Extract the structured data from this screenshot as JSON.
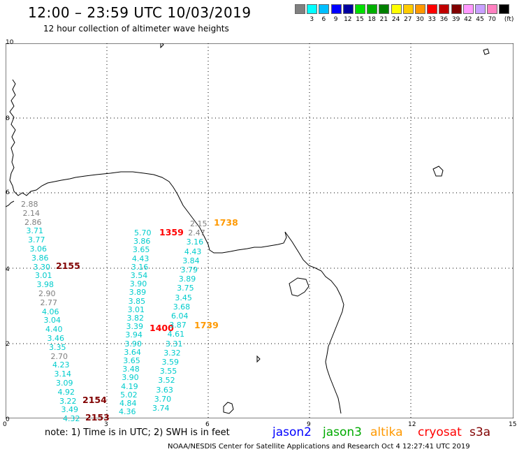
{
  "header": {
    "title": "12:00 – 23:59 UTC 10/03/2019",
    "subtitle": "12 hour collection of altimeter wave heights"
  },
  "color_scale": {
    "swatches": [
      {
        "label": "",
        "color": "#808080"
      },
      {
        "label": "3",
        "color": "#00ffff"
      },
      {
        "label": "6",
        "color": "#00bfff"
      },
      {
        "label": "9",
        "color": "#0000ff"
      },
      {
        "label": "12",
        "color": "#0000a0"
      },
      {
        "label": "15",
        "color": "#00e000"
      },
      {
        "label": "18",
        "color": "#00b000"
      },
      {
        "label": "21",
        "color": "#008000"
      },
      {
        "label": "24",
        "color": "#ffff00"
      },
      {
        "label": "27",
        "color": "#ffcc00"
      },
      {
        "label": "30",
        "color": "#ff9900"
      },
      {
        "label": "33",
        "color": "#ff0000"
      },
      {
        "label": "36",
        "color": "#c00000"
      },
      {
        "label": "39",
        "color": "#800000"
      },
      {
        "label": "42",
        "color": "#ff99ff"
      },
      {
        "label": "45",
        "color": "#c8a0ff"
      },
      {
        "label": "70",
        "color": "#ff80c0"
      },
      {
        "label": "",
        "color": "#000000"
      }
    ],
    "unit": "(ft)"
  },
  "axes": {
    "x_ticks": [
      "0",
      "3",
      "6",
      "9",
      "12",
      "15"
    ],
    "y_ticks": [
      "0",
      "2",
      "4",
      "6",
      "8",
      "10"
    ]
  },
  "tracks": [
    {
      "id": "t1",
      "time": {
        "text": "2155",
        "color": "#800000"
      },
      "values": [
        {
          "v": "2.88",
          "c": "#808080"
        },
        {
          "v": "2.14",
          "c": "#808080"
        },
        {
          "v": "2.86",
          "c": "#808080"
        },
        {
          "v": "3.71",
          "c": "#00cccc"
        },
        {
          "v": "3.77",
          "c": "#00cccc"
        },
        {
          "v": "3.06",
          "c": "#00cccc"
        },
        {
          "v": "3.86",
          "c": "#00cccc"
        },
        {
          "v": "3.30",
          "c": "#00cccc"
        },
        {
          "v": "3.01",
          "c": "#00cccc"
        },
        {
          "v": "3.98",
          "c": "#00cccc"
        },
        {
          "v": "2.90",
          "c": "#808080"
        },
        {
          "v": "2.77",
          "c": "#808080"
        },
        {
          "v": "4.06",
          "c": "#00cccc"
        },
        {
          "v": "3.04",
          "c": "#00cccc"
        },
        {
          "v": "4.40",
          "c": "#00cccc"
        },
        {
          "v": "3.46",
          "c": "#00cccc"
        },
        {
          "v": "3.35",
          "c": "#00cccc"
        },
        {
          "v": "2.70",
          "c": "#808080"
        },
        {
          "v": "4.23",
          "c": "#00cccc"
        },
        {
          "v": "3.14",
          "c": "#00cccc"
        },
        {
          "v": "3.09",
          "c": "#00cccc"
        },
        {
          "v": "4.92",
          "c": "#00cccc"
        },
        {
          "v": "3.22",
          "c": "#00cccc"
        },
        {
          "v": "3.49",
          "c": "#00cccc"
        },
        {
          "v": "4.32",
          "c": "#00cccc"
        }
      ],
      "times": [
        {
          "text": "2154",
          "color": "#800000"
        },
        {
          "text": "2153",
          "color": "#800000"
        }
      ]
    },
    {
      "id": "t2",
      "time": {
        "text": "1359",
        "color": "#ff0000"
      },
      "values": [
        {
          "v": "5.70",
          "c": "#00cccc"
        },
        {
          "v": "3.86",
          "c": "#00cccc"
        },
        {
          "v": "3.65",
          "c": "#00cccc"
        },
        {
          "v": "4.43",
          "c": "#00cccc"
        },
        {
          "v": "3.16",
          "c": "#00cccc"
        },
        {
          "v": "3.54",
          "c": "#00cccc"
        },
        {
          "v": "3.90",
          "c": "#00cccc"
        },
        {
          "v": "3.89",
          "c": "#00cccc"
        },
        {
          "v": "3.85",
          "c": "#00cccc"
        },
        {
          "v": "3.01",
          "c": "#00cccc"
        },
        {
          "v": "3.82",
          "c": "#00cccc"
        },
        {
          "v": "3.39",
          "c": "#00cccc"
        },
        {
          "v": "3.94",
          "c": "#00cccc"
        },
        {
          "v": "3.90",
          "c": "#00cccc"
        },
        {
          "v": "3.64",
          "c": "#00cccc"
        },
        {
          "v": "3.65",
          "c": "#00cccc"
        },
        {
          "v": "3.48",
          "c": "#00cccc"
        },
        {
          "v": "3.90",
          "c": "#00cccc"
        },
        {
          "v": "4.19",
          "c": "#00cccc"
        },
        {
          "v": "5.02",
          "c": "#00cccc"
        },
        {
          "v": "4.84",
          "c": "#00cccc"
        },
        {
          "v": "4.36",
          "c": "#00cccc"
        }
      ],
      "time2": {
        "text": "1400",
        "color": "#ff0000"
      }
    },
    {
      "id": "t3",
      "time": {
        "text": "1738",
        "color": "#ff9900"
      },
      "values": [
        {
          "v": "2.15",
          "c": "#808080"
        },
        {
          "v": "2.47",
          "c": "#808080"
        },
        {
          "v": "3.16",
          "c": "#00cccc"
        },
        {
          "v": "4.43",
          "c": "#00cccc"
        },
        {
          "v": "3.84",
          "c": "#00cccc"
        },
        {
          "v": "3.79",
          "c": "#00cccc"
        },
        {
          "v": "3.89",
          "c": "#00cccc"
        },
        {
          "v": "3.75",
          "c": "#00cccc"
        },
        {
          "v": "3.45",
          "c": "#00cccc"
        },
        {
          "v": "3.68",
          "c": "#00cccc"
        },
        {
          "v": "6.04",
          "c": "#00cccc"
        },
        {
          "v": "3.87",
          "c": "#00cccc"
        },
        {
          "v": "4.61",
          "c": "#00cccc"
        },
        {
          "v": "3.31",
          "c": "#00cccc"
        },
        {
          "v": "3.32",
          "c": "#00cccc"
        },
        {
          "v": "3.59",
          "c": "#00cccc"
        },
        {
          "v": "3.55",
          "c": "#00cccc"
        },
        {
          "v": "3.52",
          "c": "#00cccc"
        },
        {
          "v": "3.63",
          "c": "#00cccc"
        },
        {
          "v": "3.70",
          "c": "#00cccc"
        },
        {
          "v": "3.74",
          "c": "#00cccc"
        }
      ],
      "time2": {
        "text": "1739",
        "color": "#ff9900"
      }
    }
  ],
  "footer": {
    "note": "note:  1) Time is in UTC; 2) SWH is in feet",
    "missions": [
      {
        "name": "jason2",
        "color": "#0000ff"
      },
      {
        "name": "jason3",
        "color": "#00aa00"
      },
      {
        "name": "altika",
        "color": "#ff9900"
      },
      {
        "name": "cryosat",
        "color": "#ff0000"
      },
      {
        "name": "s3a",
        "color": "#800000"
      }
    ],
    "credit": "NOAA/NESDIS Center for Satellite Applications and Research    Oct  4 12:27:41 UTC 2019"
  }
}
